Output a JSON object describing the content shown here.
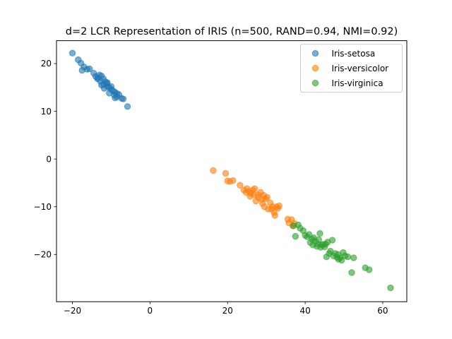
{
  "chart_data": {
    "type": "scatter",
    "title": "d=2 LCR Representation of IRIS (n=500, RAND=0.94, NMI=0.92)",
    "xlabel": "",
    "ylabel": "",
    "xlim": [
      -24.1,
      66.2
    ],
    "ylim": [
      -29.9,
      24.8
    ],
    "x_ticks": [
      -20,
      0,
      20,
      40,
      60
    ],
    "y_ticks": [
      -20,
      -10,
      0,
      10,
      20
    ],
    "x_tick_labels": [
      "−20",
      "0",
      "20",
      "40",
      "60"
    ],
    "y_tick_labels": [
      "−20",
      "−10",
      "0",
      "10",
      "20"
    ],
    "grid": false,
    "legend_position": "top-right",
    "marker_alpha": 0.6,
    "series": [
      {
        "name": "Iris-setosa",
        "color": "#1f77b4",
        "points": [
          [
            -20.0,
            22.2
          ],
          [
            -18.5,
            20.8
          ],
          [
            -17.8,
            20.1
          ],
          [
            -17.0,
            19.3
          ],
          [
            -16.2,
            18.8
          ],
          [
            -15.6,
            18.9
          ],
          [
            -17.5,
            18.6
          ],
          [
            -14.5,
            18.0
          ],
          [
            -14.0,
            17.3
          ],
          [
            -13.5,
            17.0
          ],
          [
            -13.0,
            17.6
          ],
          [
            -12.5,
            17.4
          ],
          [
            -12.0,
            16.8
          ],
          [
            -11.5,
            16.2
          ],
          [
            -11.2,
            15.9
          ],
          [
            -12.8,
            16.3
          ],
          [
            -12.0,
            15.6
          ],
          [
            -11.0,
            15.2
          ],
          [
            -10.5,
            15.0
          ],
          [
            -10.0,
            14.6
          ],
          [
            -9.5,
            14.3
          ],
          [
            -9.0,
            14.0
          ],
          [
            -8.5,
            13.7
          ],
          [
            -8.5,
            13.0
          ],
          [
            -8.0,
            13.5
          ],
          [
            -7.3,
            12.7
          ],
          [
            -6.9,
            12.6
          ],
          [
            -5.8,
            11.0
          ],
          [
            -11.8,
            14.8
          ],
          [
            -10.5,
            13.8
          ],
          [
            -9.2,
            13.4
          ],
          [
            -12.5,
            15.5
          ],
          [
            -13.5,
            16.8
          ],
          [
            -11.0,
            16.0
          ],
          [
            -10.0,
            15.2
          ],
          [
            -9.0,
            12.8
          ]
        ]
      },
      {
        "name": "Iris-versicolor",
        "color": "#ff7f0e",
        "points": [
          [
            16.3,
            -2.4
          ],
          [
            19.5,
            -3.0
          ],
          [
            20.0,
            -4.6
          ],
          [
            20.6,
            -4.7
          ],
          [
            21.4,
            -4.5
          ],
          [
            23.2,
            -5.5
          ],
          [
            24.2,
            -6.5
          ],
          [
            25.0,
            -6.2
          ],
          [
            25.5,
            -6.8
          ],
          [
            24.8,
            -7.0
          ],
          [
            26.0,
            -7.2
          ],
          [
            26.5,
            -6.5
          ],
          [
            27.0,
            -6.2
          ],
          [
            27.3,
            -8.8
          ],
          [
            27.8,
            -7.5
          ],
          [
            28.0,
            -8.1
          ],
          [
            28.5,
            -7.0
          ],
          [
            28.8,
            -8.5
          ],
          [
            29.0,
            -9.3
          ],
          [
            29.3,
            -7.6
          ],
          [
            29.5,
            -10.0
          ],
          [
            29.8,
            -8.3
          ],
          [
            30.2,
            -8.0
          ],
          [
            31.0,
            -9.2
          ],
          [
            31.3,
            -10.5
          ],
          [
            31.6,
            -10.0
          ],
          [
            32.0,
            -11.2
          ],
          [
            32.2,
            -11.8
          ],
          [
            32.6,
            -10.0
          ],
          [
            33.0,
            -10.3
          ],
          [
            33.3,
            -9.8
          ],
          [
            35.5,
            -12.6
          ],
          [
            35.8,
            -13.4
          ],
          [
            36.5,
            -12.7
          ],
          [
            36.8,
            -14.0
          ],
          [
            37.2,
            -13.5
          ],
          [
            25.8,
            -7.8
          ],
          [
            26.8,
            -7.5
          ],
          [
            30.5,
            -10.5
          ]
        ]
      },
      {
        "name": "Iris-virginica",
        "color": "#2ca02c",
        "points": [
          [
            37.0,
            -14.0
          ],
          [
            37.5,
            -16.2
          ],
          [
            38.2,
            -13.8
          ],
          [
            38.7,
            -14.5
          ],
          [
            39.5,
            -15.0
          ],
          [
            40.0,
            -16.0
          ],
          [
            40.5,
            -16.3
          ],
          [
            41.0,
            -15.8
          ],
          [
            41.3,
            -17.5
          ],
          [
            41.8,
            -16.8
          ],
          [
            42.2,
            -16.5
          ],
          [
            42.6,
            -17.2
          ],
          [
            43.0,
            -18.3
          ],
          [
            43.2,
            -17.8
          ],
          [
            43.5,
            -16.9
          ],
          [
            43.8,
            -15.6
          ],
          [
            44.2,
            -18.0
          ],
          [
            44.6,
            -17.9
          ],
          [
            45.0,
            -18.4
          ],
          [
            45.3,
            -17.8
          ],
          [
            45.5,
            -20.5
          ],
          [
            45.8,
            -17.4
          ],
          [
            46.2,
            -19.8
          ],
          [
            46.5,
            -19.3
          ],
          [
            47.0,
            -17.0
          ],
          [
            47.3,
            -20.3
          ],
          [
            47.8,
            -19.8
          ],
          [
            48.2,
            -20.6
          ],
          [
            48.6,
            -21.0
          ],
          [
            49.0,
            -20.7
          ],
          [
            49.4,
            -21.2
          ],
          [
            49.8,
            -19.6
          ],
          [
            50.3,
            -20.3
          ],
          [
            51.0,
            -20.5
          ],
          [
            52.0,
            -23.8
          ],
          [
            52.5,
            -20.7
          ],
          [
            55.5,
            -22.8
          ],
          [
            56.5,
            -23.2
          ],
          [
            62.0,
            -27.0
          ],
          [
            42.0,
            -18.0
          ],
          [
            44.0,
            -18.5
          ],
          [
            48.5,
            -20.0
          ]
        ]
      }
    ]
  }
}
